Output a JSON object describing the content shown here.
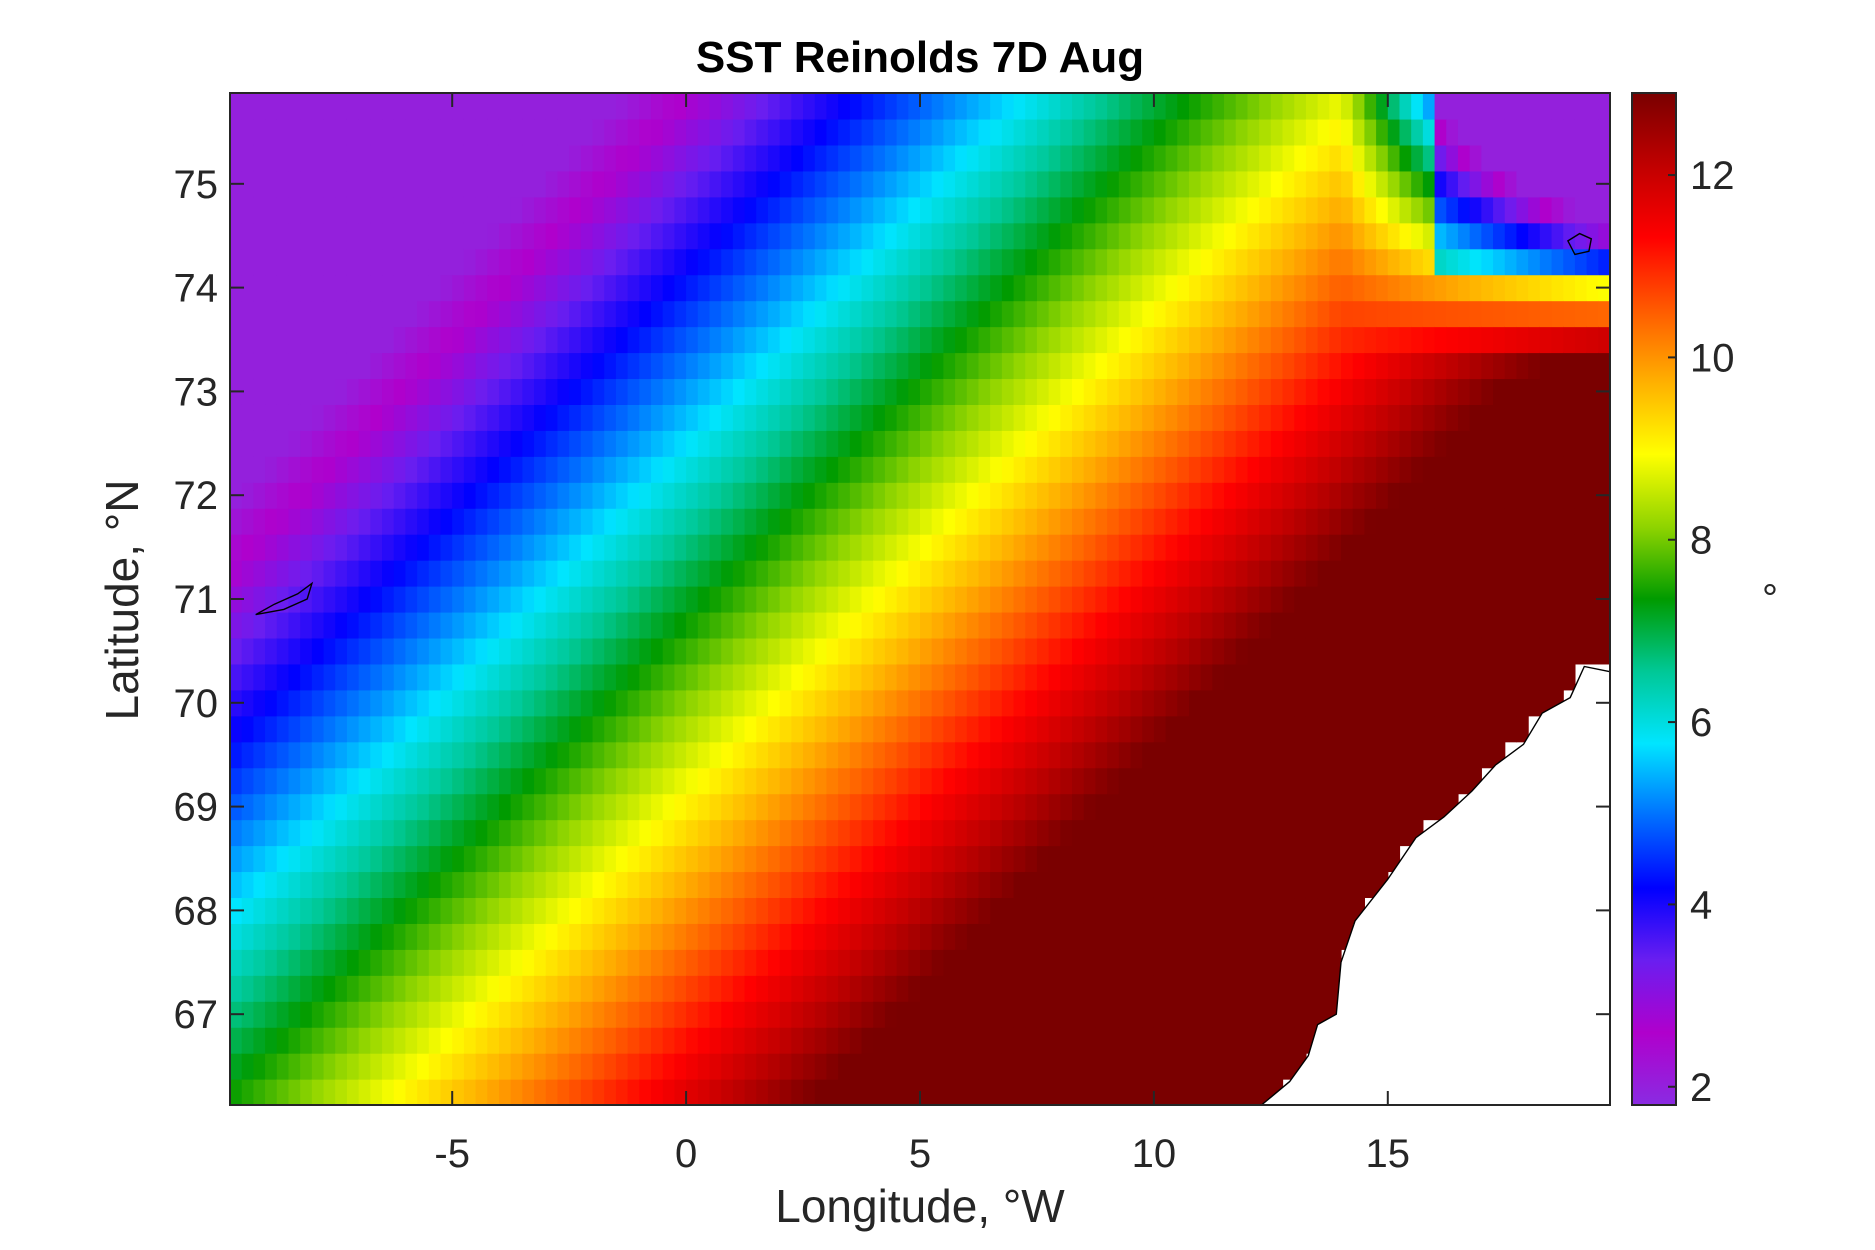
{
  "chart_data": {
    "type": "heatmap",
    "title": "SST Reinolds 7D Aug",
    "xlabel": "Longitude, °W",
    "ylabel": "Latitude, °N",
    "colorbar_label": "°",
    "xlim": [
      -9.75,
      19.75
    ],
    "ylim": [
      66.125,
      75.875
    ],
    "clim": [
      1.8,
      12.9
    ],
    "xticks": [
      -5,
      0,
      5,
      10,
      15
    ],
    "xtick_labels": [
      "-5",
      "0",
      "5",
      "10",
      "15"
    ],
    "yticks": [
      67,
      68,
      69,
      70,
      71,
      72,
      73,
      74,
      75
    ],
    "ytick_labels": [
      "67",
      "68",
      "69",
      "70",
      "71",
      "72",
      "73",
      "74",
      "75"
    ],
    "cbar_ticks": [
      2,
      4,
      6,
      8,
      10,
      12
    ],
    "cbar_tick_labels": [
      "2",
      "4",
      "6",
      "8",
      "10",
      "12"
    ],
    "colormap": [
      "#8a2be2",
      "#b000cc",
      "#6a1ef0",
      "#0000ff",
      "#0070ff",
      "#00e5ff",
      "#00c896",
      "#009b00",
      "#8fd400",
      "#ffff00",
      "#ffb000",
      "#ff5a00",
      "#ff0000",
      "#c00000",
      "#7a0000"
    ],
    "grid_resolution_deg": 0.25,
    "grid": "off",
    "land_color": "#ffffff",
    "coast_color": "#000000",
    "description_note": ""
  }
}
